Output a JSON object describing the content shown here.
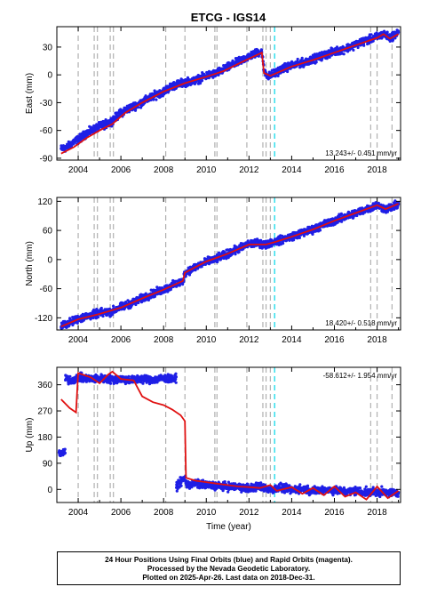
{
  "chart_data": [
    {
      "type": "scatter",
      "title": "ETCG - IGS14",
      "ylabel": "East (mm)",
      "xlabel": "",
      "xlim": [
        2003.0,
        2019.1
      ],
      "ylim": [
        -92,
        52
      ],
      "x_ticks": [
        2004,
        2006,
        2008,
        2010,
        2012,
        2014,
        2016,
        2018
      ],
      "y_ticks": [
        -90,
        -60,
        -30,
        0,
        30
      ],
      "rate_label": "13.243+/- 0.451 mm/yr",
      "series": [
        {
          "kind": "observations",
          "color": "#1f1fe6",
          "points": [
            [
              2003.2,
              -80
            ],
            [
              2003.5,
              -78
            ],
            [
              2003.8,
              -72
            ],
            [
              2004.0,
              -70
            ],
            [
              2004.4,
              -63
            ],
            [
              2004.8,
              -58
            ],
            [
              2005.0,
              -56
            ],
            [
              2005.5,
              -51
            ],
            [
              2005.9,
              -43
            ],
            [
              2006.2,
              -38
            ],
            [
              2006.8,
              -32
            ],
            [
              2007.2,
              -27
            ],
            [
              2007.6,
              -22
            ],
            [
              2008.0,
              -18
            ],
            [
              2008.4,
              -12
            ],
            [
              2009.0,
              -8
            ],
            [
              2009.5,
              -6
            ],
            [
              2010.0,
              -1
            ],
            [
              2010.5,
              2
            ],
            [
              2011.0,
              8
            ],
            [
              2011.5,
              14
            ],
            [
              2012.0,
              20
            ],
            [
              2012.4,
              24
            ],
            [
              2012.6,
              25
            ],
            [
              2012.7,
              5
            ],
            [
              2012.9,
              -2
            ],
            [
              2013.2,
              2
            ],
            [
              2013.6,
              7
            ],
            [
              2014.0,
              10
            ],
            [
              2014.5,
              13
            ],
            [
              2015.0,
              17
            ],
            [
              2015.5,
              21
            ],
            [
              2016.0,
              25
            ],
            [
              2016.5,
              28
            ],
            [
              2017.0,
              33
            ],
            [
              2017.5,
              37
            ],
            [
              2018.0,
              41
            ],
            [
              2018.3,
              44
            ],
            [
              2018.6,
              40
            ],
            [
              2019.0,
              46
            ]
          ]
        },
        {
          "kind": "model",
          "color": "#e01010",
          "points": [
            [
              2003.2,
              -85
            ],
            [
              2003.8,
              -78
            ],
            [
              2004.4,
              -68
            ],
            [
              2005.0,
              -60
            ],
            [
              2005.6,
              -53
            ],
            [
              2006.2,
              -41
            ],
            [
              2007.0,
              -30
            ],
            [
              2008.0,
              -18
            ],
            [
              2009.0,
              -9
            ],
            [
              2010.0,
              -2
            ],
            [
              2010.8,
              4
            ],
            [
              2011.6,
              13
            ],
            [
              2012.6,
              24
            ],
            [
              2012.7,
              2
            ],
            [
              2013.0,
              -1
            ],
            [
              2014.0,
              9
            ],
            [
              2015.0,
              16
            ],
            [
              2016.0,
              24
            ],
            [
              2017.0,
              32
            ],
            [
              2018.0,
              40
            ],
            [
              2018.3,
              44
            ],
            [
              2018.6,
              39
            ],
            [
              2019.0,
              44
            ]
          ]
        }
      ],
      "vlines_gray": [
        2004.0,
        2004.75,
        2004.9,
        2005.5,
        2005.65,
        2008.1,
        2009.0,
        2010.4,
        2010.5,
        2011.9,
        2012.65,
        2012.8,
        2013.0,
        2017.7,
        2018.0,
        2018.7
      ],
      "vlines_cyan": [
        2013.2
      ]
    },
    {
      "type": "scatter",
      "title": "",
      "ylabel": "North (mm)",
      "xlabel": "",
      "xlim": [
        2003.0,
        2019.1
      ],
      "ylim": [
        -145,
        128
      ],
      "x_ticks": [
        2004,
        2006,
        2008,
        2010,
        2012,
        2014,
        2016,
        2018
      ],
      "y_ticks": [
        -120,
        -60,
        0,
        60,
        120
      ],
      "rate_label": "18.420+/- 0.518 mm/yr",
      "series": [
        {
          "kind": "observations",
          "color": "#1f1fe6",
          "points": [
            [
              2003.2,
              -137
            ],
            [
              2003.6,
              -130
            ],
            [
              2004.0,
              -122
            ],
            [
              2004.5,
              -116
            ],
            [
              2005.0,
              -110
            ],
            [
              2005.5,
              -108
            ],
            [
              2006.0,
              -98
            ],
            [
              2006.5,
              -90
            ],
            [
              2007.0,
              -80
            ],
            [
              2007.5,
              -70
            ],
            [
              2008.0,
              -62
            ],
            [
              2008.5,
              -52
            ],
            [
              2008.9,
              -45
            ],
            [
              2009.0,
              -27
            ],
            [
              2009.5,
              -15
            ],
            [
              2010.0,
              -5
            ],
            [
              2010.5,
              2
            ],
            [
              2011.0,
              12
            ],
            [
              2011.5,
              22
            ],
            [
              2012.0,
              32
            ],
            [
              2012.5,
              34
            ],
            [
              2012.8,
              30
            ],
            [
              2013.0,
              35
            ],
            [
              2013.5,
              40
            ],
            [
              2014.0,
              48
            ],
            [
              2014.5,
              55
            ],
            [
              2015.0,
              62
            ],
            [
              2015.5,
              72
            ],
            [
              2016.0,
              80
            ],
            [
              2016.5,
              88
            ],
            [
              2017.0,
              96
            ],
            [
              2017.5,
              104
            ],
            [
              2018.0,
              112
            ],
            [
              2018.4,
              104
            ],
            [
              2018.7,
              108
            ],
            [
              2019.0,
              114
            ]
          ]
        },
        {
          "kind": "model",
          "color": "#e01010",
          "points": [
            [
              2003.2,
              -138
            ],
            [
              2004.0,
              -123
            ],
            [
              2005.0,
              -112
            ],
            [
              2006.0,
              -99
            ],
            [
              2007.0,
              -80
            ],
            [
              2008.0,
              -62
            ],
            [
              2008.9,
              -44
            ],
            [
              2009.0,
              -27
            ],
            [
              2010.0,
              -4
            ],
            [
              2011.0,
              12
            ],
            [
              2012.0,
              31
            ],
            [
              2012.8,
              31
            ],
            [
              2013.2,
              36
            ],
            [
              2014.0,
              47
            ],
            [
              2015.0,
              62
            ],
            [
              2016.0,
              80
            ],
            [
              2017.0,
              96
            ],
            [
              2018.0,
              112
            ],
            [
              2018.4,
              104
            ],
            [
              2019.0,
              115
            ]
          ]
        }
      ],
      "vlines_gray": [
        2004.0,
        2004.75,
        2004.9,
        2005.5,
        2005.65,
        2008.1,
        2009.0,
        2010.4,
        2010.5,
        2011.9,
        2012.65,
        2012.8,
        2013.0,
        2017.7,
        2018.0,
        2018.7
      ],
      "vlines_cyan": [
        2013.2
      ]
    },
    {
      "type": "scatter",
      "title": "",
      "ylabel": "Up (mm)",
      "xlabel": "Time (year)",
      "xlim": [
        2003.0,
        2019.1
      ],
      "ylim": [
        -45,
        420
      ],
      "x_ticks": [
        2004,
        2006,
        2008,
        2010,
        2012,
        2014,
        2016,
        2018
      ],
      "y_ticks": [
        0,
        90,
        180,
        270,
        360
      ],
      "rate_label": "-58.612+/- 1.954 mm/yr",
      "series": [
        {
          "kind": "observations",
          "color": "#1f1fe6",
          "points": [
            [
              2003.1,
              130
            ],
            [
              2003.2,
              115
            ],
            [
              2003.3,
              128
            ],
            [
              2003.4,
              380
            ],
            [
              2003.7,
              375
            ],
            [
              2004.0,
              385
            ],
            [
              2004.5,
              380
            ],
            [
              2005.0,
              382
            ],
            [
              2005.5,
              378
            ],
            [
              2006.0,
              380
            ],
            [
              2006.5,
              376
            ],
            [
              2007.0,
              380
            ],
            [
              2007.5,
              378
            ],
            [
              2008.0,
              382
            ],
            [
              2008.4,
              380
            ],
            [
              2008.6,
              10
            ],
            [
              2009.0,
              40
            ],
            [
              2009.1,
              15
            ],
            [
              2009.5,
              20
            ],
            [
              2010.0,
              15
            ],
            [
              2010.5,
              12
            ],
            [
              2011.0,
              10
            ],
            [
              2011.5,
              8
            ],
            [
              2012.0,
              5
            ],
            [
              2012.5,
              10
            ],
            [
              2013.0,
              0
            ],
            [
              2013.5,
              5
            ],
            [
              2014.0,
              -2
            ],
            [
              2014.5,
              3
            ],
            [
              2015.0,
              -5
            ],
            [
              2015.5,
              0
            ],
            [
              2016.0,
              -3
            ],
            [
              2016.5,
              -8
            ],
            [
              2017.0,
              -5
            ],
            [
              2017.5,
              -10
            ],
            [
              2018.0,
              -8
            ],
            [
              2018.5,
              -12
            ],
            [
              2019.0,
              -10
            ]
          ]
        },
        {
          "kind": "model",
          "color": "#e01010",
          "points": [
            [
              2003.2,
              310
            ],
            [
              2003.6,
              280
            ],
            [
              2003.9,
              265
            ],
            [
              2004.0,
              400
            ],
            [
              2004.6,
              385
            ],
            [
              2005.0,
              365
            ],
            [
              2005.4,
              395
            ],
            [
              2005.6,
              405
            ],
            [
              2006.0,
              380
            ],
            [
              2006.6,
              375
            ],
            [
              2007.0,
              320
            ],
            [
              2007.5,
              300
            ],
            [
              2008.0,
              290
            ],
            [
              2008.4,
              275
            ],
            [
              2008.8,
              255
            ],
            [
              2009.0,
              235
            ],
            [
              2009.05,
              40
            ],
            [
              2009.5,
              30
            ],
            [
              2010.0,
              25
            ],
            [
              2010.5,
              20
            ],
            [
              2011.0,
              15
            ],
            [
              2011.5,
              10
            ],
            [
              2012.0,
              8
            ],
            [
              2012.5,
              5
            ],
            [
              2013.0,
              15
            ],
            [
              2013.3,
              -5
            ],
            [
              2014.0,
              8
            ],
            [
              2014.5,
              -15
            ],
            [
              2015.0,
              5
            ],
            [
              2015.5,
              -20
            ],
            [
              2016.0,
              10
            ],
            [
              2016.5,
              -25
            ],
            [
              2017.0,
              -10
            ],
            [
              2017.5,
              -35
            ],
            [
              2018.0,
              10
            ],
            [
              2018.5,
              -30
            ],
            [
              2019.0,
              -5
            ]
          ]
        }
      ],
      "vlines_gray": [
        2004.0,
        2004.75,
        2004.9,
        2005.5,
        2005.65,
        2008.1,
        2009.0,
        2010.4,
        2010.5,
        2011.9,
        2012.65,
        2012.8,
        2013.0,
        2017.7,
        2018.0,
        2018.7
      ],
      "vlines_cyan": [
        2013.2
      ]
    }
  ],
  "caption": {
    "line1": "24 Hour Positions Using Final Orbits (blue) and Rapid Orbits (magenta).",
    "line2": "Processed by the Nevada Geodetic Laboratory.",
    "line3": "Plotted on 2025-Apr-26. Last data on 2018-Dec-31."
  }
}
